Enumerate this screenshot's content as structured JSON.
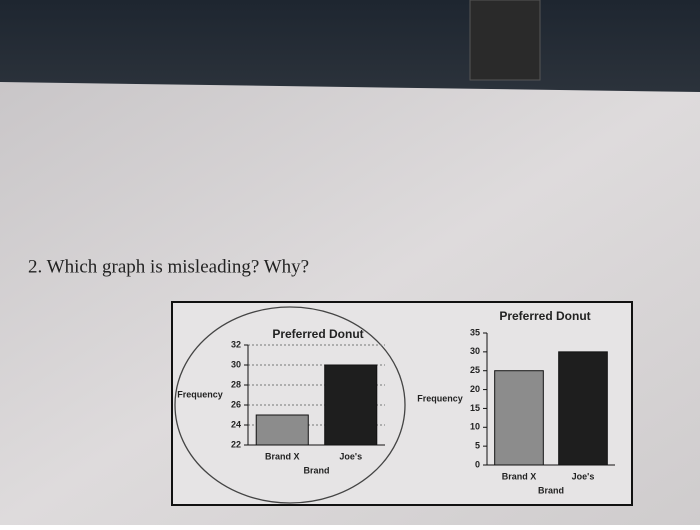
{
  "question": "2. Which graph is misleading? Why?",
  "chart_data": [
    {
      "type": "bar",
      "title": "Preferred Donut",
      "x_label": "Brand",
      "y_label": "Frequency",
      "categories": [
        "Brand X",
        "Joe's"
      ],
      "values": [
        25,
        30
      ],
      "colors": [
        "#8c8c8c",
        "#1e1e1e"
      ],
      "ylim": [
        22,
        32
      ],
      "yticks": [
        22,
        24,
        26,
        28,
        30,
        32
      ],
      "grid": true
    },
    {
      "type": "bar",
      "title": "Preferred Donut",
      "x_label": "Brand",
      "y_label": "Frequency",
      "categories": [
        "Brand X",
        "Joe's"
      ],
      "values": [
        25,
        30
      ],
      "colors": [
        "#8c8c8c",
        "#1e1e1e"
      ],
      "ylim": [
        0,
        35
      ],
      "yticks": [
        0,
        5,
        10,
        15,
        20,
        25,
        30,
        35
      ],
      "grid": false
    }
  ]
}
